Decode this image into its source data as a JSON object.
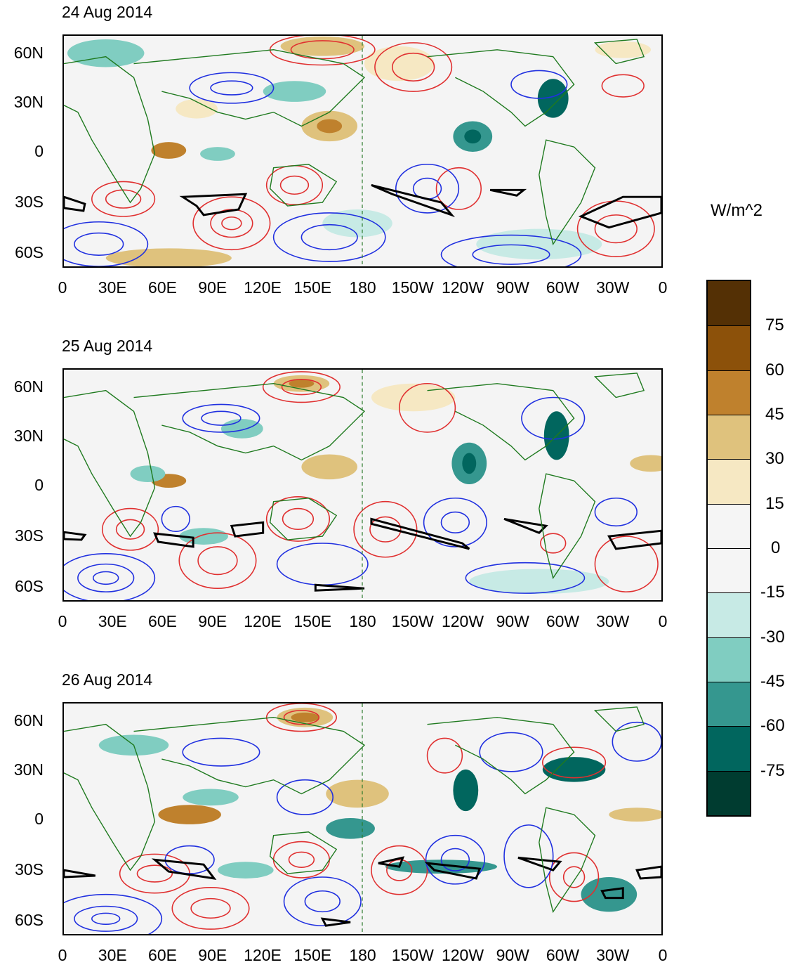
{
  "panels": [
    {
      "title": "24 Aug 2014"
    },
    {
      "title": "25 Aug 2014"
    },
    {
      "title": "26 Aug 2014"
    }
  ],
  "axes": {
    "lat_labels": [
      "60N",
      "30N",
      "0",
      "30S",
      "60S"
    ],
    "lon_labels": [
      "0",
      "30E",
      "60E",
      "90E",
      "120E",
      "150E",
      "180",
      "150W",
      "120W",
      "90W",
      "60W",
      "30W",
      "0"
    ]
  },
  "colorbar": {
    "units": "W/m^2",
    "labels": [
      "75",
      "60",
      "45",
      "30",
      "15",
      "0",
      "-15",
      "-30",
      "-45",
      "-60",
      "-75"
    ],
    "colors": [
      "#543005",
      "#8c510a",
      "#bf812d",
      "#dfc27d",
      "#f6e8c3",
      "#f5f5f5",
      "#f5f5f5",
      "#c7eae5",
      "#80cdc1",
      "#35978f",
      "#01665e",
      "#003c30"
    ]
  },
  "chart_data": {
    "type": "heatmap",
    "panels": [
      "24 Aug 2014",
      "25 Aug 2014",
      "26 Aug 2014"
    ],
    "x": [
      "0",
      "30E",
      "60E",
      "90E",
      "120E",
      "150E",
      "180",
      "150W",
      "120W",
      "90W",
      "60W",
      "30W",
      "0"
    ],
    "y": [
      "60N",
      "30N",
      "0",
      "30S",
      "60S"
    ],
    "units": "W/m^2",
    "levels": [
      -75,
      -60,
      -45,
      -30,
      -15,
      0,
      15,
      30,
      45,
      60,
      75
    ],
    "overlays": [
      "red contours (positive)",
      "blue contours (negative)",
      "black thick contours",
      "coastlines"
    ]
  }
}
